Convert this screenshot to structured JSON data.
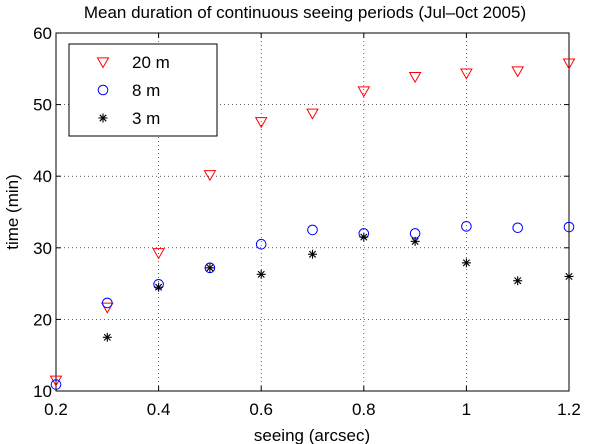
{
  "chart_data": {
    "type": "scatter",
    "title": "Mean duration of continuous seeing periods (Jul–0ct 2005)",
    "xlabel": "seeing (arcsec)",
    "ylabel": "time (min)",
    "xlim": [
      0.2,
      1.2
    ],
    "ylim": [
      10,
      60
    ],
    "xticks": [
      "0.2",
      "0.4",
      "0.6",
      "0.8",
      "1",
      "1.2"
    ],
    "yticks": [
      "10",
      "20",
      "30",
      "40",
      "50",
      "60"
    ],
    "grid": true,
    "legend_position": "top-left",
    "series": [
      {
        "name": "20 m",
        "marker": "triangle-down",
        "color": "#ff0000",
        "x": [
          0.2,
          0.3,
          0.4,
          0.5,
          0.6,
          0.7,
          0.8,
          0.9,
          1.0,
          1.1,
          1.2
        ],
        "y": [
          11.5,
          21.7,
          29.3,
          40.2,
          47.6,
          48.8,
          51.9,
          53.9,
          54.4,
          54.7,
          55.8
        ]
      },
      {
        "name": "8 m",
        "marker": "circle",
        "color": "#0000ff",
        "x": [
          0.2,
          0.3,
          0.4,
          0.5,
          0.6,
          0.7,
          0.8,
          0.9,
          1.0,
          1.1,
          1.2
        ],
        "y": [
          10.9,
          22.3,
          24.9,
          27.2,
          30.5,
          32.5,
          32.0,
          32.0,
          33.0,
          32.8,
          32.9
        ]
      },
      {
        "name": "3 m",
        "marker": "asterisk",
        "color": "#000000",
        "x": [
          0.3,
          0.4,
          0.5,
          0.6,
          0.7,
          0.8,
          0.9,
          1.0,
          1.1,
          1.2
        ],
        "y": [
          17.5,
          24.5,
          27.2,
          26.3,
          29.1,
          31.5,
          30.9,
          27.9,
          25.4,
          26.0
        ]
      }
    ]
  }
}
